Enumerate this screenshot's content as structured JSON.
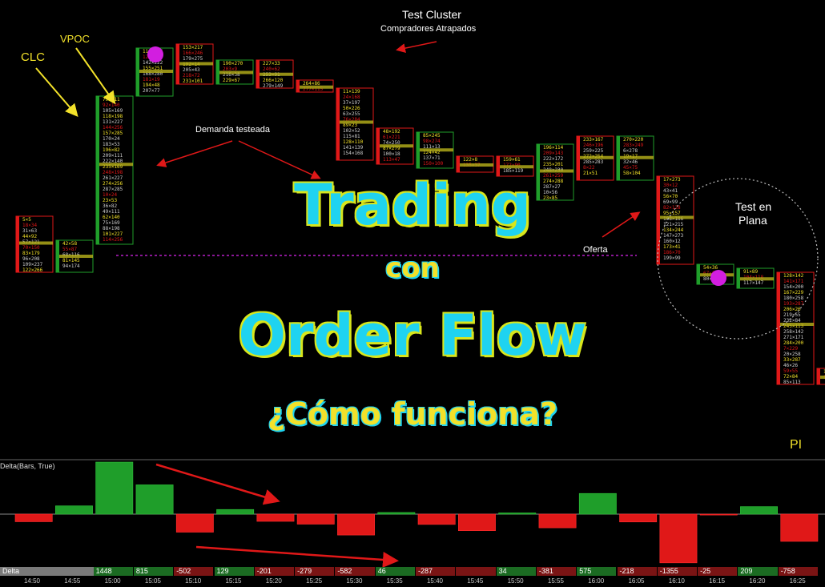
{
  "title": {
    "line1": "Trading",
    "line2": "con",
    "line3": "Order Flow",
    "line4": "¿Cómo funciona?"
  },
  "annotations": {
    "clc": "CLC",
    "vpoc": "VPOC",
    "test_cluster": "Test Cluster",
    "compradores": "Compradores Atrapados",
    "demanda": "Demanda testeada",
    "oferta": "Oferta",
    "test_plana_1": "Test en",
    "test_plana_2": "Plana",
    "pi": "PI"
  },
  "colors": {
    "up": "#1f9e2a",
    "down": "#e01818",
    "title_fill": "#1fd3f0",
    "title_outline": "#d8e61c",
    "arrow_red": "#e01818",
    "arrow_yellow": "#f2e12a",
    "poc_marker": "#d21ee0",
    "offer_line": "#b81fc8"
  },
  "chart_data": [
    {
      "type": "candlestick-footprint",
      "title": "",
      "candles": [
        {
          "dir": "down"
        },
        {
          "dir": "up"
        },
        {
          "dir": "up"
        },
        {
          "dir": "up"
        },
        {
          "dir": "down"
        },
        {
          "dir": "up"
        },
        {
          "dir": "down"
        },
        {
          "dir": "down"
        },
        {
          "dir": "down"
        },
        {
          "dir": "down"
        },
        {
          "dir": "up"
        },
        {
          "dir": "down"
        },
        {
          "dir": "down"
        },
        {
          "dir": "up"
        },
        {
          "dir": "down"
        },
        {
          "dir": "up"
        },
        {
          "dir": "down"
        },
        {
          "dir": "up"
        },
        {
          "dir": "up"
        },
        {
          "dir": "down"
        },
        {
          "dir": "down"
        },
        {
          "dir": "down"
        },
        {
          "dir": "up"
        },
        {
          "dir": "down"
        },
        {
          "dir": "up"
        }
      ]
    },
    {
      "type": "bar",
      "title": "Delta(Bars, True)",
      "label": "Delta",
      "categories": [
        "14:50",
        "14:55",
        "15:00",
        "15:05",
        "15:10",
        "15:15",
        "15:20",
        "15:25",
        "15:30",
        "15:35",
        "15:40",
        "15:45",
        "15:50",
        "15:55",
        "16:00",
        "16:05",
        "16:10",
        "16:15",
        "16:20",
        "16:25"
      ],
      "values": [
        -211,
        230,
        1448,
        815,
        -502,
        129,
        -201,
        -279,
        -582,
        46,
        -287,
        -461,
        34,
        -381,
        575,
        -218,
        -1355,
        -25,
        209,
        -758
      ],
      "value_labels": [
        "",
        "",
        "1448",
        "815",
        "-502",
        "129",
        "-201",
        "-279",
        "-582",
        "46",
        "-287",
        "",
        "34",
        "-381",
        "575",
        "-218",
        "-1355",
        "-25",
        "209",
        "-758"
      ],
      "ylim": [
        -1500,
        1500
      ]
    }
  ]
}
